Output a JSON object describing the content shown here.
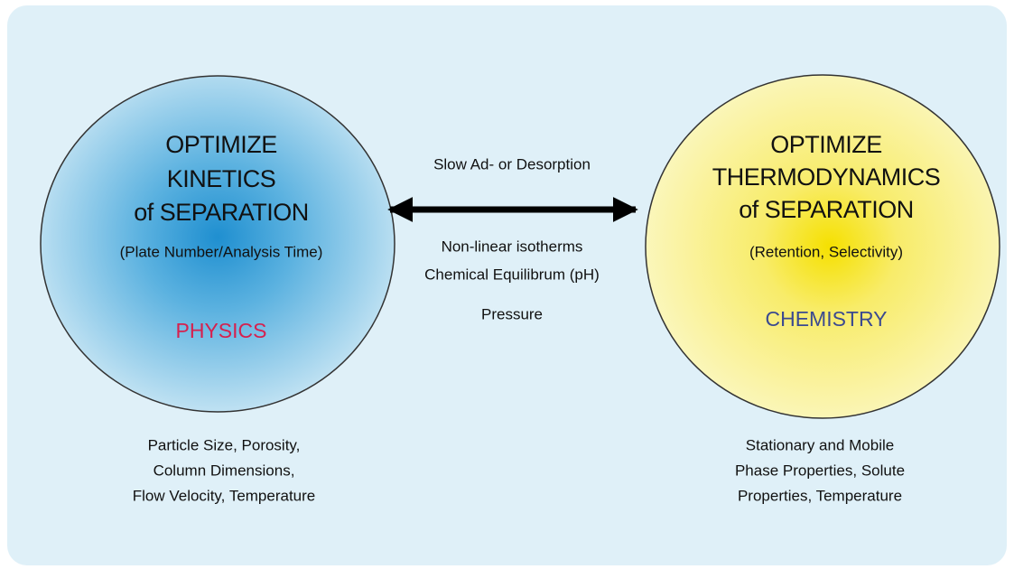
{
  "left": {
    "title_lines": [
      "OPTIMIZE",
      "KINETICS",
      "of SEPARATION"
    ],
    "subtitle": "(Plate Number/Analysis Time)",
    "label": "PHYSICS",
    "factors": [
      "Particle Size, Porosity,",
      "Column Dimensions,",
      "Flow Velocity, Temperature"
    ]
  },
  "right": {
    "title_lines": [
      "OPTIMIZE",
      "THERMODYNAMICS",
      "of SEPARATION"
    ],
    "subtitle": "(Retention, Selectivity)",
    "label": "CHEMISTRY",
    "factors": [
      "Stationary and Mobile",
      "Phase Properties, Solute",
      "Properties, Temperature"
    ]
  },
  "arrow": {
    "top_label": "Slow Ad- or Desorption",
    "bottom_labels": [
      "Non-linear isotherms",
      "Chemical Equilibrum (pH)",
      "Pressure"
    ]
  }
}
